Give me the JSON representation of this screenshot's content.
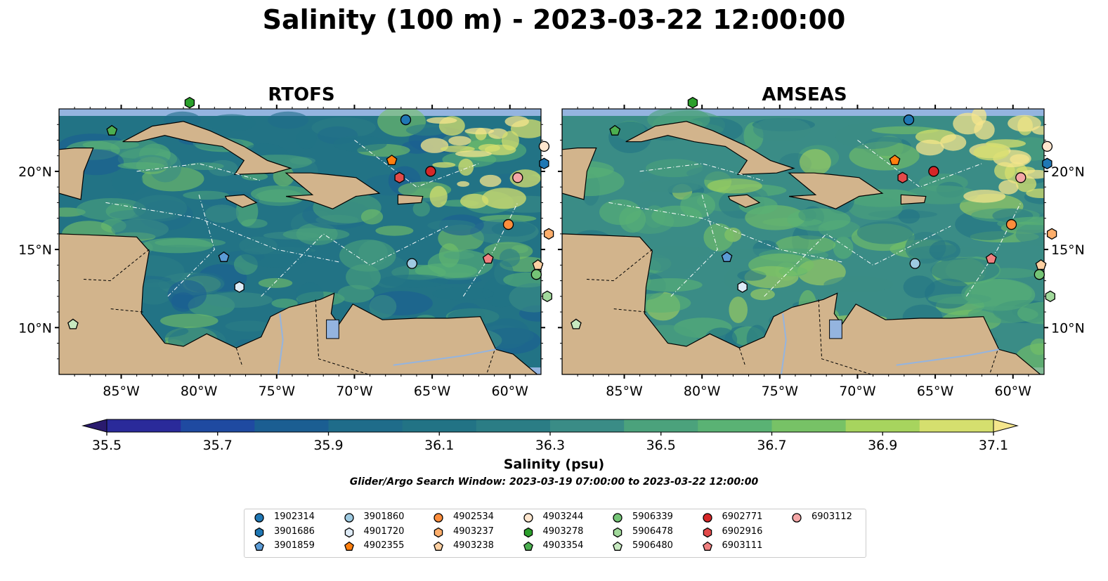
{
  "title": "Salinity (100 m) - 2023-03-22 12:00:00",
  "panels": [
    {
      "name": "RTOFS",
      "key": "rtofs"
    },
    {
      "name": "AMSEAS",
      "key": "amseas"
    }
  ],
  "colors": {
    "land": "#d2b48c",
    "ocean_outside": "#94b4df",
    "colormap": [
      "#2a1b6e",
      "#2a2a9a",
      "#1f4aa1",
      "#1b5e92",
      "#1f6c8a",
      "#227385",
      "#2b7d85",
      "#3a8c86",
      "#4ba27c",
      "#5ab274",
      "#77c266",
      "#a7d45e",
      "#d5df6e",
      "#f5e68c"
    ]
  },
  "chart_data": {
    "type": "heatmap",
    "variable": "Salinity (psu)",
    "depth": "100 m",
    "x_ticks": [
      "85°W",
      "80°W",
      "75°W",
      "70°W",
      "65°W",
      "60°W"
    ],
    "x_tick_values": [
      -85,
      -80,
      -75,
      -70,
      -65,
      -60
    ],
    "y_ticks": [
      "10°N",
      "15°N",
      "20°N"
    ],
    "y_tick_values": [
      10,
      15,
      20
    ],
    "xlim": [
      -89,
      -58
    ],
    "ylim": [
      7,
      24
    ],
    "colorbar": {
      "ticks": [
        "35.5",
        "35.7",
        "35.9",
        "36.1",
        "36.3",
        "36.5",
        "36.7",
        "36.9",
        "37.1"
      ],
      "min": 35.5,
      "max": 37.1,
      "extend": "both"
    },
    "floats": [
      {
        "id": "1902314",
        "lon": -66.7,
        "lat": 23.3,
        "marker": "circle",
        "color": "#1f77b4"
      },
      {
        "id": "3901686",
        "lon": -57.8,
        "lat": 20.5,
        "marker": "hexagon",
        "color": "#1f77b4"
      },
      {
        "id": "3901859",
        "lon": -78.4,
        "lat": 14.5,
        "marker": "pentagon",
        "color": "#5b9bd5"
      },
      {
        "id": "3901860",
        "lon": -66.3,
        "lat": 14.1,
        "marker": "circle",
        "color": "#9ecae1"
      },
      {
        "id": "4901720",
        "lon": -77.4,
        "lat": 12.6,
        "marker": "hexagon",
        "color": "#deebf7"
      },
      {
        "id": "4902355",
        "lon": -67.6,
        "lat": 20.7,
        "marker": "pentagon",
        "color": "#ff7f0e"
      },
      {
        "id": "4902534",
        "lon": -60.1,
        "lat": 16.6,
        "marker": "circle",
        "color": "#fd8d3c"
      },
      {
        "id": "4903237",
        "lon": -57.5,
        "lat": 16.0,
        "marker": "hexagon",
        "color": "#fdae6b"
      },
      {
        "id": "4903238",
        "lon": -58.2,
        "lat": 14.0,
        "marker": "pentagon",
        "color": "#fdd0a2"
      },
      {
        "id": "4903244",
        "lon": -57.8,
        "lat": 21.6,
        "marker": "circle",
        "color": "#fee6ce"
      },
      {
        "id": "4903278",
        "lon": -80.6,
        "lat": 24.4,
        "marker": "hexagon",
        "color": "#2ca02c"
      },
      {
        "id": "4903354",
        "lon": -85.6,
        "lat": 22.6,
        "marker": "pentagon",
        "color": "#4caf50"
      },
      {
        "id": "5906339",
        "lon": -58.3,
        "lat": 13.4,
        "marker": "circle",
        "color": "#74c476"
      },
      {
        "id": "5906478",
        "lon": -57.6,
        "lat": 12.0,
        "marker": "hexagon",
        "color": "#a1d99b"
      },
      {
        "id": "5906480",
        "lon": -88.1,
        "lat": 10.2,
        "marker": "pentagon",
        "color": "#c7e9c0"
      },
      {
        "id": "6902771",
        "lon": -65.1,
        "lat": 20.0,
        "marker": "circle",
        "color": "#d62728"
      },
      {
        "id": "6902916",
        "lon": -67.1,
        "lat": 19.6,
        "marker": "hexagon",
        "color": "#e34a4a"
      },
      {
        "id": "6903111",
        "lon": -61.4,
        "lat": 14.4,
        "marker": "pentagon",
        "color": "#f08080"
      },
      {
        "id": "6903112",
        "lon": -59.5,
        "lat": 19.6,
        "marker": "circle",
        "color": "#f4a6a6"
      }
    ]
  },
  "colorbar_label": "Salinity (psu)",
  "search_window": "Glider/Argo Search Window: 2023-03-19 07:00:00 to 2023-03-22 12:00:00"
}
